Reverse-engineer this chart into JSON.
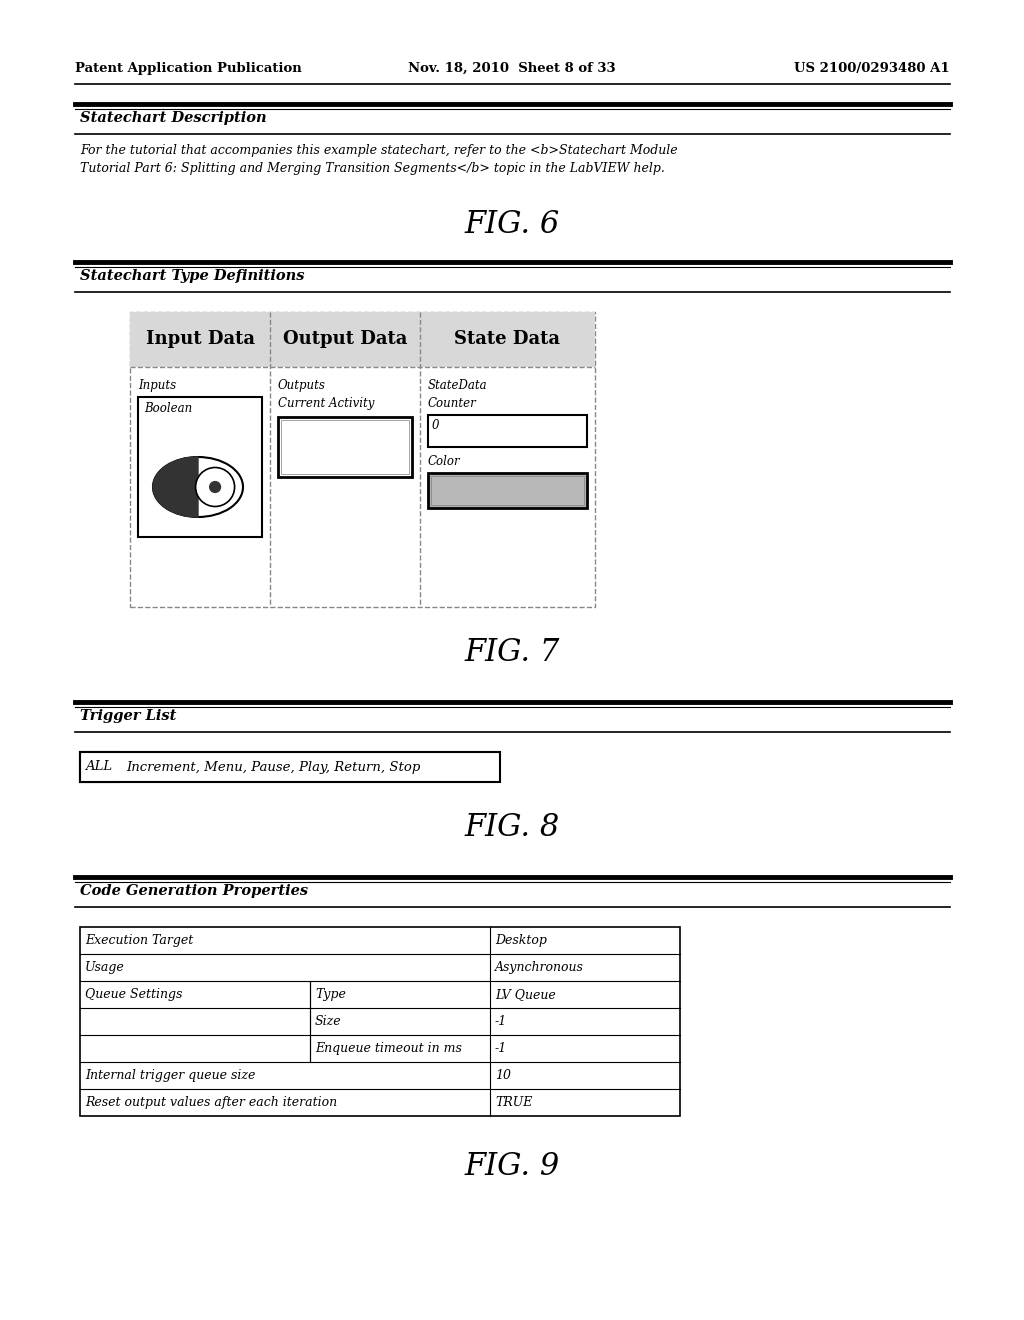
{
  "page_header": {
    "left": "Patent Application Publication",
    "center": "Nov. 18, 2010  Sheet 8 of 33",
    "right": "US 2100/0293480 A1"
  },
  "fig6": {
    "section_title": "Statechart Description",
    "body1": "For the tutorial that accompanies this example statechart, refer to the <b>Statechart Module",
    "body2": "Tutorial Part 6: Splitting and Merging Transition Segments</b> topic in the LabVIEW help.",
    "fig_label": "FIG. 6"
  },
  "fig7": {
    "section_title": "Statechart Type Definitions",
    "fig_label": "FIG. 7",
    "col_headers": [
      "Input Data",
      "Output Data",
      "State Data"
    ],
    "input_label": "Inputs",
    "output_label": "Outputs",
    "output_item": "Current Activity",
    "state_label": "StateData",
    "state_items": [
      "Counter",
      "0",
      "Color"
    ]
  },
  "fig8": {
    "section_title": "Trigger List",
    "fig_label": "FIG. 8",
    "trigger_all": "ALL",
    "trigger_list": "Increment, Menu, Pause, Play, Return, Stop"
  },
  "fig9": {
    "section_title": "Code Generation Properties",
    "fig_label": "FIG. 9",
    "rows": [
      {
        "c1": "Execution Target",
        "c2_span": true,
        "c3": "Desktop"
      },
      {
        "c1": "Usage",
        "c2_span": true,
        "c3": "Asynchronous"
      },
      {
        "c1": "Queue Settings",
        "c2": "Type",
        "c3": "LV Queue"
      },
      {
        "c1": "",
        "c2": "Size",
        "c3": "-1"
      },
      {
        "c1": "",
        "c2": "Enqueue timeout in ms",
        "c3": "-1"
      },
      {
        "c1": "Internal trigger queue size",
        "c2_span": true,
        "c3": "10"
      },
      {
        "c1": "Reset output values after each iteration",
        "c2_span": true,
        "c3": "TRUE"
      }
    ]
  }
}
